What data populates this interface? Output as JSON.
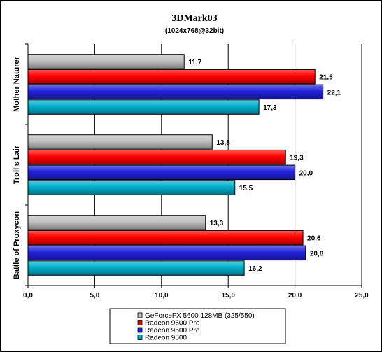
{
  "chart_data": {
    "type": "bar",
    "orientation": "horizontal",
    "title": "3DMark03",
    "subtitle": "(1024x768@32bit)",
    "xlabel": "",
    "ylabel": "",
    "xlim": [
      0,
      25
    ],
    "xticks": [
      "0,0",
      "5,0",
      "10,0",
      "15,0",
      "20,0",
      "25,0"
    ],
    "grid": true,
    "legend_position": "bottom",
    "categories": [
      "Mother Naturer",
      "Troll's Lair",
      "Battle of Proxycon"
    ],
    "series": [
      {
        "name": "GeForceFX 5600 128MB (325/550)",
        "color": "#c0c0c0",
        "values": [
          11.7,
          13.8,
          13.3
        ],
        "labels": [
          "11,7",
          "13,8",
          "13,3"
        ]
      },
      {
        "name": "Radeon 9600 Pro",
        "color": "#ff0000",
        "values": [
          21.5,
          19.3,
          20.6
        ],
        "labels": [
          "21,5",
          "19,3",
          "20,6"
        ]
      },
      {
        "name": "Radeon 9500 Pro",
        "color": "#2222dd",
        "values": [
          22.1,
          20.0,
          20.8
        ],
        "labels": [
          "22,1",
          "20,0",
          "20,8"
        ]
      },
      {
        "name": "Radeon 9500",
        "color": "#00b0cc",
        "values": [
          17.3,
          15.5,
          16.2
        ],
        "labels": [
          "17,3",
          "15,5",
          "16,2"
        ]
      }
    ]
  }
}
